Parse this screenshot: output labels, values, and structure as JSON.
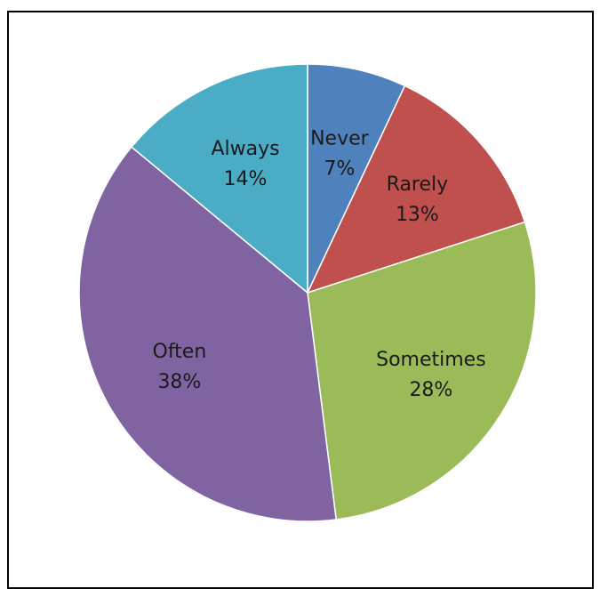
{
  "chart_data": {
    "type": "pie",
    "title": "",
    "start_angle_deg": 0,
    "direction": "clockwise",
    "slices": [
      {
        "label": "Never",
        "value": 7,
        "value_label": "7%",
        "color": "#4F81BD"
      },
      {
        "label": "Rarely",
        "value": 13,
        "value_label": "13%",
        "color": "#C0504D"
      },
      {
        "label": "Sometimes",
        "value": 28,
        "value_label": "28%",
        "color": "#9BBB59"
      },
      {
        "label": "Often",
        "value": 38,
        "value_label": "38%",
        "color": "#8064A2"
      },
      {
        "label": "Always",
        "value": 14,
        "value_label": "14%",
        "color": "#4BACC6"
      }
    ],
    "legend": "none",
    "data_labels": "inside"
  }
}
